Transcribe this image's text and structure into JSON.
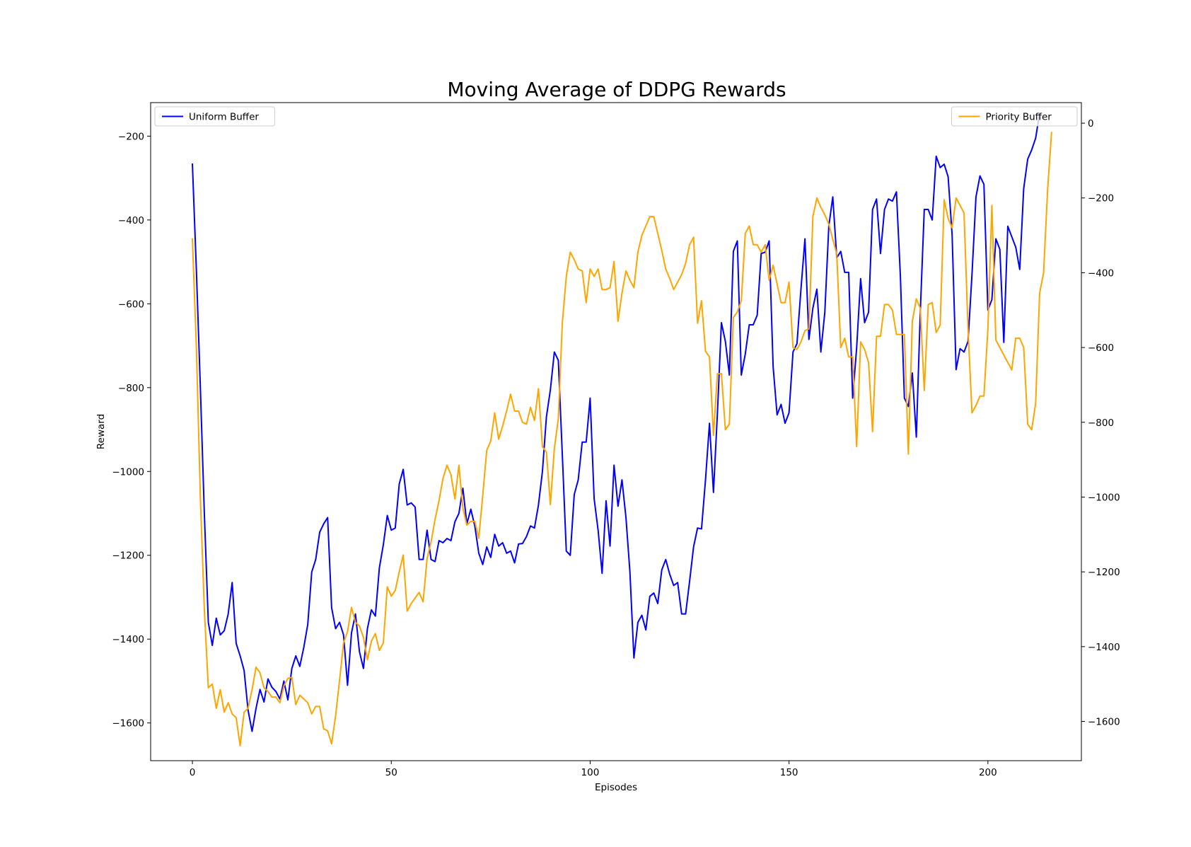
{
  "chart_data": {
    "type": "line",
    "title": "Moving Average of DDPG Rewards",
    "xlabel": "Episodes",
    "ylabel": "Reward",
    "y2label": "",
    "xlim": [
      -10.5,
      223.5
    ],
    "ylim": [
      -1690,
      -120
    ],
    "y2lim": [
      -1705,
      55
    ],
    "x_ticks": [
      0,
      50,
      100,
      150,
      200
    ],
    "y_ticks": [
      -1600,
      -1400,
      -1200,
      -1000,
      -800,
      -600,
      -400,
      -200
    ],
    "y2_ticks": [
      -1600,
      -1400,
      -1200,
      -1000,
      -800,
      -600,
      -400,
      -200,
      0
    ],
    "grid": false,
    "series": [
      {
        "name": "Uniform Buffer",
        "color": "#0000ff",
        "axis": "left",
        "legend_position": "upper-left",
        "x_start": 0,
        "values": [
          -267,
          -520,
          -800,
          -1100,
          -1360,
          -1415,
          -1350,
          -1390,
          -1380,
          -1340,
          -1265,
          -1410,
          -1440,
          -1475,
          -1570,
          -1620,
          -1565,
          -1520,
          -1550,
          -1495,
          -1515,
          -1525,
          -1543,
          -1500,
          -1545,
          -1470,
          -1440,
          -1465,
          -1420,
          -1365,
          -1240,
          -1210,
          -1145,
          -1125,
          -1110,
          -1325,
          -1375,
          -1360,
          -1390,
          -1510,
          -1385,
          -1340,
          -1430,
          -1470,
          -1375,
          -1330,
          -1345,
          -1230,
          -1175,
          -1105,
          -1140,
          -1135,
          -1030,
          -995,
          -1080,
          -1075,
          -1085,
          -1210,
          -1210,
          -1140,
          -1210,
          -1215,
          -1165,
          -1170,
          -1160,
          -1165,
          -1120,
          -1100,
          -1040,
          -1125,
          -1090,
          -1130,
          -1195,
          -1222,
          -1180,
          -1205,
          -1150,
          -1178,
          -1170,
          -1195,
          -1190,
          -1218,
          -1173,
          -1172,
          -1155,
          -1130,
          -1135,
          -1080,
          -1000,
          -870,
          -805,
          -715,
          -735,
          -960,
          -1190,
          -1200,
          -1055,
          -1020,
          -930,
          -930,
          -825,
          -1065,
          -1140,
          -1243,
          -1070,
          -1178,
          -985,
          -1083,
          -1020,
          -1110,
          -1240,
          -1445,
          -1360,
          -1343,
          -1378,
          -1298,
          -1290,
          -1315,
          -1235,
          -1210,
          -1245,
          -1272,
          -1265,
          -1340,
          -1340,
          -1262,
          -1180,
          -1135,
          -1137,
          -1020,
          -885,
          -1050,
          -860,
          -645,
          -690,
          -770,
          -475,
          -450,
          -770,
          -720,
          -650,
          -650,
          -627,
          -480,
          -477,
          -450,
          -750,
          -865,
          -840,
          -885,
          -860,
          -715,
          -695,
          -565,
          -445,
          -685,
          -610,
          -565,
          -715,
          -620,
          -415,
          -345,
          -490,
          -475,
          -525,
          -525,
          -825,
          -705,
          -540,
          -645,
          -620,
          -375,
          -350,
          -480,
          -375,
          -350,
          -355,
          -333,
          -535,
          -825,
          -845,
          -765,
          -918,
          -620,
          -375,
          -375,
          -400,
          -248,
          -275,
          -267,
          -297,
          -435,
          -757,
          -707,
          -715,
          -690,
          -530,
          -345,
          -295,
          -315,
          -615,
          -590,
          -445,
          -470,
          -692,
          -415,
          -440,
          -465,
          -518,
          -325,
          -255,
          -233,
          -205,
          -145
        ]
      },
      {
        "name": "Priority Buffer",
        "color": "#ffa500",
        "axis": "right",
        "legend_position": "upper-right",
        "x_start": 0,
        "values": [
          -310,
          -600,
          -1000,
          -1300,
          -1510,
          -1500,
          -1565,
          -1515,
          -1575,
          -1550,
          -1580,
          -1590,
          -1665,
          -1575,
          -1565,
          -1515,
          -1455,
          -1470,
          -1510,
          -1520,
          -1535,
          -1535,
          -1550,
          -1505,
          -1485,
          -1482,
          -1555,
          -1530,
          -1540,
          -1550,
          -1580,
          -1560,
          -1560,
          -1620,
          -1625,
          -1660,
          -1585,
          -1490,
          -1390,
          -1360,
          -1295,
          -1335,
          -1345,
          -1375,
          -1435,
          -1385,
          -1365,
          -1410,
          -1390,
          -1240,
          -1265,
          -1250,
          -1200,
          -1155,
          -1305,
          -1285,
          -1270,
          -1255,
          -1280,
          -1165,
          -1120,
          -1060,
          -1010,
          -950,
          -915,
          -940,
          -1005,
          -915,
          -1030,
          -1075,
          -1065,
          -1065,
          -1110,
          -995,
          -875,
          -850,
          -775,
          -845,
          -810,
          -770,
          -725,
          -770,
          -770,
          -800,
          -805,
          -760,
          -795,
          -710,
          -865,
          -880,
          -1020,
          -870,
          -790,
          -535,
          -410,
          -345,
          -365,
          -390,
          -395,
          -480,
          -390,
          -410,
          -390,
          -445,
          -445,
          -440,
          -370,
          -530,
          -455,
          -395,
          -420,
          -440,
          -345,
          -300,
          -275,
          -250,
          -250,
          -295,
          -340,
          -390,
          -415,
          -445,
          -425,
          -405,
          -375,
          -325,
          -305,
          -535,
          -475,
          -610,
          -625,
          -835,
          -670,
          -670,
          -820,
          -805,
          -520,
          -505,
          -475,
          -295,
          -275,
          -325,
          -325,
          -345,
          -325,
          -420,
          -380,
          -430,
          -480,
          -480,
          -425,
          -600,
          -605,
          -585,
          -555,
          -550,
          -250,
          -200,
          -225,
          -245,
          -270,
          -310,
          -350,
          -600,
          -575,
          -625,
          -625,
          -865,
          -585,
          -605,
          -640,
          -825,
          -570,
          -570,
          -485,
          -485,
          -500,
          -565,
          -565,
          -565,
          -885,
          -530,
          -470,
          -495,
          -715,
          -485,
          -480,
          -560,
          -540,
          -205,
          -255,
          -280,
          -200,
          -220,
          -240,
          -550,
          -775,
          -755,
          -730,
          -730,
          -550,
          -220,
          -580,
          -600,
          -620,
          -640,
          -660,
          -575,
          -575,
          -600,
          -805,
          -820,
          -750,
          -455,
          -400,
          -180,
          -25
        ]
      }
    ]
  }
}
